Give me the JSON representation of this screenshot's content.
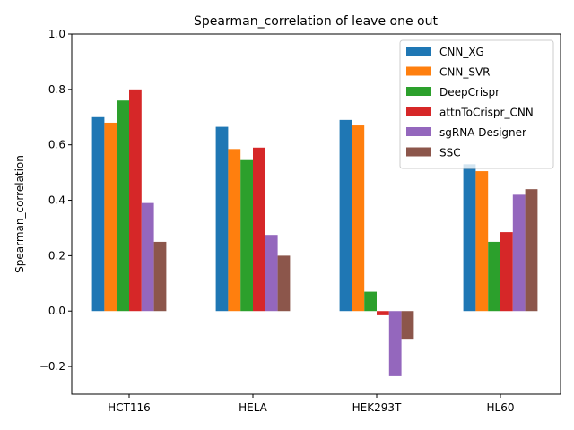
{
  "chart_data": {
    "type": "bar",
    "title": "Spearman_correlation of leave one out",
    "xlabel": "",
    "ylabel": "Spearman_correlation",
    "ylim": [
      -0.3,
      1.0
    ],
    "yticks": [
      -0.2,
      0.0,
      0.2,
      0.4,
      0.6,
      0.8,
      1.0
    ],
    "ytick_labels": [
      "−0.2",
      "0.0",
      "0.2",
      "0.4",
      "0.6",
      "0.8",
      "1.0"
    ],
    "categories": [
      "HCT116",
      "HELA",
      "HEK293T",
      "HL60"
    ],
    "grid": false,
    "legend_position": "top-right",
    "series": [
      {
        "name": "CNN_XG",
        "color": "#1f77b4",
        "values": [
          0.7,
          0.665,
          0.69,
          0.53
        ]
      },
      {
        "name": "CNN_SVR",
        "color": "#ff7f0e",
        "values": [
          0.68,
          0.585,
          0.67,
          0.505
        ]
      },
      {
        "name": "DeepCrispr",
        "color": "#2ca02c",
        "values": [
          0.76,
          0.545,
          0.07,
          0.25
        ]
      },
      {
        "name": "attnToCrispr_CNN",
        "color": "#d62728",
        "values": [
          0.8,
          0.59,
          -0.015,
          0.285
        ]
      },
      {
        "name": "sgRNA Designer",
        "color": "#9467bd",
        "values": [
          0.39,
          0.275,
          -0.235,
          0.42
        ]
      },
      {
        "name": "SSC",
        "color": "#8c564b",
        "values": [
          0.25,
          0.2,
          -0.1,
          0.44
        ]
      }
    ]
  }
}
